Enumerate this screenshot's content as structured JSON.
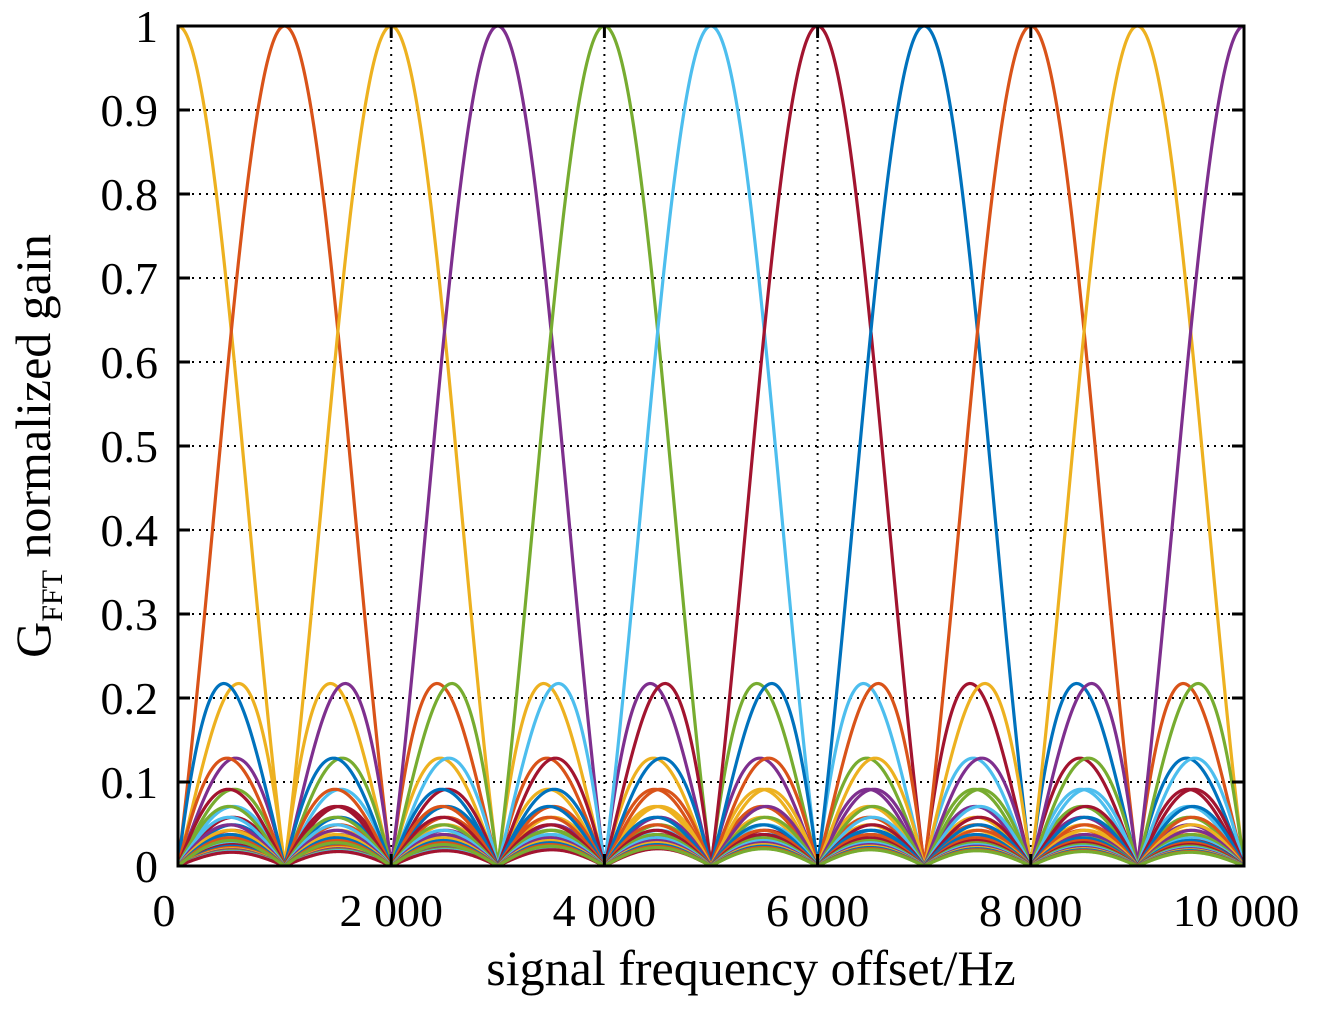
{
  "chart_data": {
    "type": "line",
    "title": "",
    "xlabel": "signal frequency offset/Hz",
    "ylabel": {
      "main": "G",
      "subscript": "FFT",
      "suffix": " normalized gain"
    },
    "xlim": [
      0,
      10000
    ],
    "ylim": [
      0,
      1
    ],
    "x_ticks": [
      0,
      2000,
      4000,
      6000,
      8000,
      10000
    ],
    "x_tick_labels": [
      "0",
      "2 000",
      "4 000",
      "6 000",
      "8 000",
      "10 000"
    ],
    "y_ticks": [
      0,
      0.1,
      0.2,
      0.3,
      0.4,
      0.5,
      0.6,
      0.7,
      0.8,
      0.9,
      1
    ],
    "y_tick_labels": [
      "0",
      "0.1",
      "0.2",
      "0.3",
      "0.4",
      "0.5",
      "0.6",
      "0.7",
      "0.8",
      "0.9",
      "1"
    ],
    "grid": true,
    "grid_style": "dotted",
    "legend": "none",
    "curve_model": "|sinc((f - fc)/1000)|",
    "bin_spacing_hz": 1000,
    "series": [
      {
        "center_hz": 0,
        "color": "#EDB120"
      },
      {
        "center_hz": 1000,
        "color": "#D95319"
      },
      {
        "center_hz": 2000,
        "color": "#EDB120"
      },
      {
        "center_hz": 3000,
        "color": "#7E2F8E"
      },
      {
        "center_hz": 4000,
        "color": "#77AC30"
      },
      {
        "center_hz": 5000,
        "color": "#4DBEEE"
      },
      {
        "center_hz": 6000,
        "color": "#A2142F"
      },
      {
        "center_hz": 7000,
        "color": "#0072BD"
      },
      {
        "center_hz": 8000,
        "color": "#D95319"
      },
      {
        "center_hz": 9000,
        "color": "#EDB120"
      },
      {
        "center_hz": 10000,
        "color": "#7E2F8E"
      },
      {
        "center_hz": 11000,
        "color": "#77AC30"
      },
      {
        "center_hz": 12000,
        "color": "#4DBEEE"
      },
      {
        "center_hz": 13000,
        "color": "#A2142F"
      },
      {
        "center_hz": 14000,
        "color": "#0072BD"
      },
      {
        "center_hz": 15000,
        "color": "#D95319"
      },
      {
        "center_hz": 16000,
        "color": "#EDB120"
      },
      {
        "center_hz": 17000,
        "color": "#7E2F8E"
      },
      {
        "center_hz": 18000,
        "color": "#77AC30"
      },
      {
        "center_hz": 19000,
        "color": "#4DBEEE"
      },
      {
        "center_hz": 20000,
        "color": "#A2142F"
      },
      {
        "center_hz": -1000,
        "color": "#0072BD"
      },
      {
        "center_hz": -2000,
        "color": "#D95319"
      },
      {
        "center_hz": -3000,
        "color": "#A2142F"
      },
      {
        "center_hz": -4000,
        "color": "#77AC30"
      },
      {
        "center_hz": -5000,
        "color": "#4DBEEE"
      },
      {
        "center_hz": -6000,
        "color": "#7E2F8E"
      },
      {
        "center_hz": -7000,
        "color": "#EDB120"
      },
      {
        "center_hz": -8000,
        "color": "#0072BD"
      },
      {
        "center_hz": -9000,
        "color": "#D95319"
      },
      {
        "center_hz": -10000,
        "color": "#77AC30"
      }
    ]
  }
}
